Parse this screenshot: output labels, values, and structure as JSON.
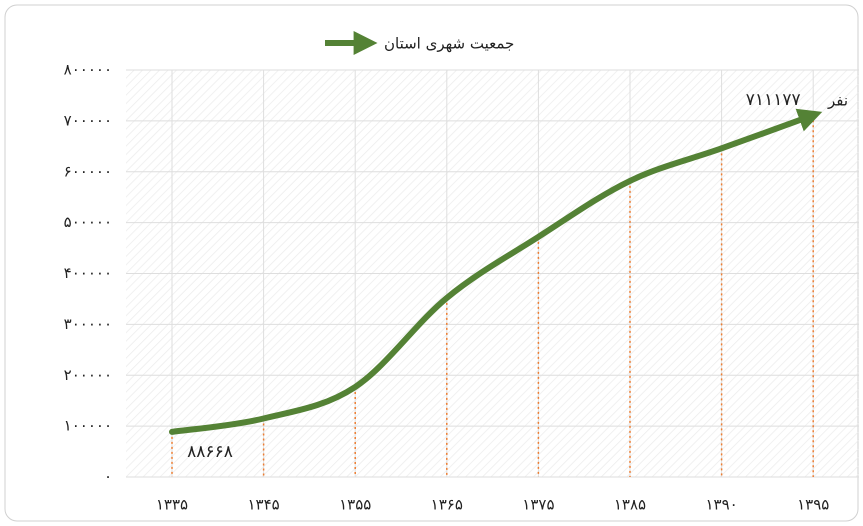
{
  "chart_data": {
    "type": "line",
    "categories": [
      "۱۳۳۵",
      "۱۳۴۵",
      "۱۳۵۵",
      "۱۳۶۵",
      "۱۳۷۵",
      "۱۳۸۵",
      "۱۳۹۰",
      "۱۳۹۵"
    ],
    "series": [
      {
        "name": "جمعیت شهری استان",
        "color": "#548235",
        "values": [
          88668,
          115000,
          177000,
          352000,
          472000,
          582000,
          646000,
          711177
        ],
        "value_labels": [
          "۸۸۶۶۸",
          null,
          null,
          null,
          null,
          null,
          null,
          "۷۱۱۱۷۷"
        ]
      }
    ],
    "y_unit": "نفر",
    "ylim": [
      0,
      800000
    ],
    "yticks": [
      {
        "value": 0,
        "label": "۰"
      },
      {
        "value": 100000,
        "label": "۱۰۰۰۰۰"
      },
      {
        "value": 200000,
        "label": "۲۰۰۰۰۰"
      },
      {
        "value": 300000,
        "label": "۳۰۰۰۰۰"
      },
      {
        "value": 400000,
        "label": "۴۰۰۰۰۰"
      },
      {
        "value": 500000,
        "label": "۵۰۰۰۰۰"
      },
      {
        "value": 600000,
        "label": "۶۰۰۰۰۰"
      },
      {
        "value": 700000,
        "label": "۷۰۰۰۰۰"
      },
      {
        "value": 800000,
        "label": "۸۰۰۰۰۰"
      }
    ],
    "grid": true,
    "legend": "top",
    "drop_line_color": "#ed7d31",
    "label_color": "#ed7d31"
  }
}
